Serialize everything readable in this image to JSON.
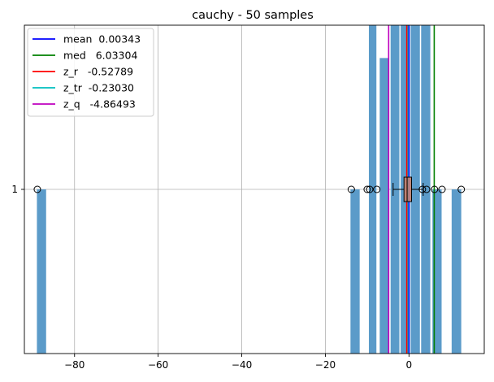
{
  "chart_data": {
    "type": "bar",
    "title": "cauchy - 50 samples",
    "xlabel": "",
    "ylabel": "",
    "xlim": [
      -92,
      18
    ],
    "ylim": [
      0,
      2
    ],
    "grid": true,
    "x_ticks": [
      {
        "value": -80,
        "label": "−80"
      },
      {
        "value": -60,
        "label": "−60"
      },
      {
        "value": -40,
        "label": "−40"
      },
      {
        "value": -20,
        "label": "−20"
      },
      {
        "value": 0,
        "label": "0"
      }
    ],
    "y_ticks": [
      {
        "value": 1,
        "label": "1"
      }
    ],
    "histogram": {
      "color": "#5b9bc9",
      "bins": [
        {
          "x0": -89.0,
          "x1": -86.8,
          "height": 1.0
        },
        {
          "x0": -14.0,
          "x1": -11.8,
          "height": 1.0
        },
        {
          "x0": -9.6,
          "x1": -7.8,
          "height": 2.0
        },
        {
          "x0": -7.0,
          "x1": -4.9,
          "height": 1.8
        },
        {
          "x0": -4.4,
          "x1": -2.3,
          "height": 2.0
        },
        {
          "x0": -2.0,
          "x1": 0.2,
          "height": 2.0
        },
        {
          "x0": 0.4,
          "x1": 2.6,
          "height": 2.0
        },
        {
          "x0": 2.9,
          "x1": 5.1,
          "height": 2.0
        },
        {
          "x0": 5.6,
          "x1": 7.8,
          "height": 1.0
        },
        {
          "x0": 10.2,
          "x1": 12.5,
          "height": 1.0
        }
      ]
    },
    "boxplot": {
      "position": 1,
      "whisker_low": -3.8,
      "q1": -1.2,
      "median": -0.45,
      "q3": 0.6,
      "whisker_high": 3.4,
      "box_color": "#c9826a",
      "outliers": [
        -88.9,
        -13.8,
        -10.0,
        -9.4,
        -7.7,
        3.2,
        4.2,
        6.1,
        7.9,
        12.5
      ]
    },
    "series": [
      {
        "name": "mean  0.00343",
        "value": 0.00343,
        "color": "#0000ff"
      },
      {
        "name": "med   6.03304",
        "value": 6.03304,
        "color": "#008000"
      },
      {
        "name": "z_r   -0.52789",
        "value": -0.52789,
        "color": "#ff0000"
      },
      {
        "name": "z_tr  -0.23030",
        "value": -0.2303,
        "color": "#00bfbf"
      },
      {
        "name": "z_q   -4.86493",
        "value": -4.86493,
        "color": "#bf00bf"
      }
    ],
    "legend_position": "top-left"
  }
}
